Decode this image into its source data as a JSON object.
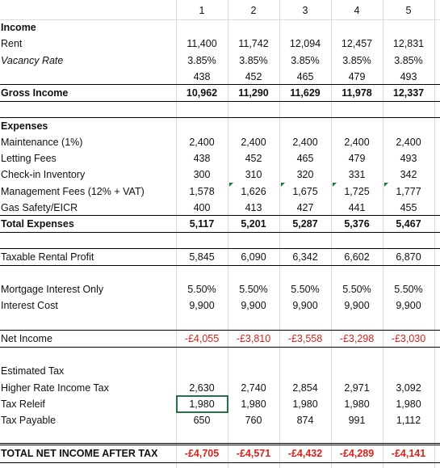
{
  "header": [
    "1",
    "2",
    "3",
    "4",
    "5"
  ],
  "rows": [
    {
      "label": "Income"
    },
    {
      "label": "Rent",
      "values": [
        "11,400",
        "11,742",
        "12,094",
        "12,457",
        "12,831"
      ]
    },
    {
      "label": "Vacancy Rate",
      "values": [
        "3.85%",
        "3.85%",
        "3.85%",
        "3.85%",
        "3.85%"
      ]
    },
    {
      "values": [
        "438",
        "452",
        "465",
        "479",
        "493"
      ]
    },
    {
      "label": "Gross Income",
      "values": [
        "10,962",
        "11,290",
        "11,629",
        "11,978",
        "12,337"
      ]
    },
    {
      "label": "Expenses"
    },
    {
      "label": "Maintenance (1%)",
      "values": [
        "2,400",
        "2,400",
        "2,400",
        "2,400",
        "2,400"
      ]
    },
    {
      "label": "Letting Fees",
      "values": [
        "438",
        "452",
        "465",
        "479",
        "493"
      ]
    },
    {
      "label": "Check-in Inventory",
      "values": [
        "300",
        "310",
        "320",
        "331",
        "342"
      ]
    },
    {
      "label": "Management Fees (12% + VAT)",
      "values": [
        "1,578",
        "1,626",
        "1,675",
        "1,725",
        "1,777"
      ]
    },
    {
      "label": "Gas Safety/EICR",
      "values": [
        "400",
        "413",
        "427",
        "441",
        "455"
      ]
    },
    {
      "label": "Total Expenses",
      "values": [
        "5,117",
        "5,201",
        "5,287",
        "5,376",
        "5,467"
      ]
    },
    {
      "label": "Taxable Rental Profit",
      "values": [
        "5,845",
        "6,090",
        "6,342",
        "6,602",
        "6,870"
      ]
    },
    {
      "label": "Mortgage Interest Only",
      "values": [
        "5.50%",
        "5.50%",
        "5.50%",
        "5.50%",
        "5.50%"
      ]
    },
    {
      "label": "Interest Cost",
      "values": [
        "9,900",
        "9,900",
        "9,900",
        "9,900",
        "9,900"
      ]
    },
    {
      "label": "Net Income",
      "values": [
        "-£4,055",
        "-£3,810",
        "-£3,558",
        "-£3,298",
        "-£3,030"
      ]
    },
    {
      "label": "Estimated Tax"
    },
    {
      "label": "Higher Rate Income Tax",
      "values": [
        "2,630",
        "2,740",
        "2,854",
        "2,971",
        "3,092"
      ]
    },
    {
      "label": "Tax Releif",
      "values": [
        "1,980",
        "1,980",
        "1,980",
        "1,980",
        "1,980"
      ]
    },
    {
      "label": "Tax Payable",
      "values": [
        "650",
        "760",
        "874",
        "991",
        "1,112"
      ]
    },
    {
      "label": "TOTAL NET INCOME AFTER TAX",
      "values": [
        "-£4,705",
        "-£4,571",
        "-£4,432",
        "-£4,289",
        "-£4,141"
      ]
    }
  ]
}
